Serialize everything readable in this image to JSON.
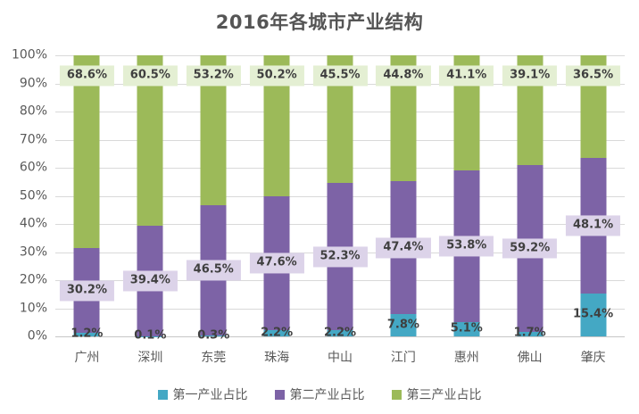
{
  "chart_data": {
    "type": "bar",
    "stacked": true,
    "title": "2016年各城市产业结构",
    "categories": [
      "广州",
      "深圳",
      "东莞",
      "珠海",
      "中山",
      "江门",
      "惠州",
      "佛山",
      "肇庆"
    ],
    "series": [
      {
        "name": "第一产业占比",
        "color": "#44a8c4",
        "label_bg": null,
        "values": [
          1.2,
          0.1,
          0.3,
          2.2,
          2.2,
          7.8,
          5.1,
          1.7,
          15.4
        ],
        "labels": [
          "1.2%",
          "0.1%",
          "0.3%",
          "2.2%",
          "2.2%",
          "7.8%",
          "5.1%",
          "1.7%",
          "15.4%"
        ]
      },
      {
        "name": "第二产业占比",
        "color": "#7d63a6",
        "label_bg": "#dcd3e9",
        "values": [
          30.2,
          39.4,
          46.5,
          47.6,
          52.3,
          47.4,
          53.8,
          59.2,
          48.1
        ],
        "labels": [
          "30.2%",
          "39.4%",
          "46.5%",
          "47.6%",
          "52.3%",
          "47.4%",
          "53.8%",
          "59.2%",
          "48.1%"
        ]
      },
      {
        "name": "第三产业占比",
        "color": "#9cba59",
        "label_bg": "#e4efd3",
        "values": [
          68.6,
          60.5,
          53.2,
          50.2,
          45.5,
          44.8,
          41.1,
          39.1,
          36.5
        ],
        "labels": [
          "68.6%",
          "60.5%",
          "53.2%",
          "50.2%",
          "45.5%",
          "44.8%",
          "41.1%",
          "39.1%",
          "36.5%"
        ]
      }
    ],
    "y_ticks": [
      "0%",
      "10%",
      "20%",
      "30%",
      "40%",
      "50%",
      "60%",
      "70%",
      "80%",
      "90%",
      "100%"
    ],
    "ylim": [
      0,
      100
    ],
    "grid": true,
    "legend_position": "bottom"
  },
  "colors": {
    "title_text": "#555555",
    "axis_text": "#595959",
    "data_label_text": "#3f3f3f",
    "gridline": "#d9d9d9",
    "axis_line": "#c6c6c6",
    "background": "#ffffff"
  }
}
